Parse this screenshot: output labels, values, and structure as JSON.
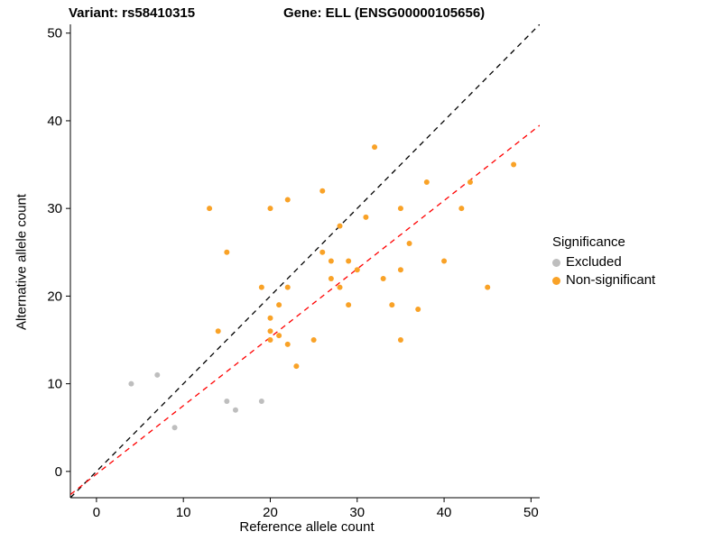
{
  "titles": {
    "variant": "Variant: rs58410315",
    "gene": "Gene: ELL (ENSG00000105656)"
  },
  "chart_data": {
    "type": "scatter",
    "title": "Variant: rs58410315  /  Gene: ELL (ENSG00000105656)",
    "xlabel": "Reference allele count",
    "ylabel": "Alternative allele count",
    "xlim": [
      -3,
      51
    ],
    "ylim": [
      -3,
      51
    ],
    "xticks": [
      0,
      10,
      20,
      30,
      40,
      50
    ],
    "yticks": [
      0,
      10,
      20,
      30,
      40,
      50
    ],
    "grid": false,
    "point_radius": 3,
    "legend": {
      "title": "Significance",
      "position": "right",
      "entries": [
        {
          "label": "Excluded",
          "color": "#BEBEBE"
        },
        {
          "label": "Non-significant",
          "color": "#F9A227"
        }
      ]
    },
    "series": [
      {
        "name": "Excluded",
        "color": "#BEBEBE",
        "points": [
          [
            4,
            10
          ],
          [
            7,
            11
          ],
          [
            9,
            5
          ],
          [
            15,
            8
          ],
          [
            16,
            7
          ],
          [
            19,
            8
          ]
        ]
      },
      {
        "name": "Non-significant",
        "color": "#F9A227",
        "points": [
          [
            13,
            30
          ],
          [
            14,
            16
          ],
          [
            15,
            25
          ],
          [
            19,
            21
          ],
          [
            20,
            30
          ],
          [
            20,
            17.5
          ],
          [
            20,
            16
          ],
          [
            20,
            15
          ],
          [
            21,
            19
          ],
          [
            21,
            15.5
          ],
          [
            22,
            31
          ],
          [
            22,
            21
          ],
          [
            22,
            14.5
          ],
          [
            23,
            12
          ],
          [
            25,
            15
          ],
          [
            26,
            32
          ],
          [
            26,
            25
          ],
          [
            27,
            24
          ],
          [
            27,
            22
          ],
          [
            28,
            28
          ],
          [
            28,
            21
          ],
          [
            29,
            24
          ],
          [
            29,
            19
          ],
          [
            30,
            23
          ],
          [
            31,
            29
          ],
          [
            32,
            37
          ],
          [
            33,
            22
          ],
          [
            34,
            19
          ],
          [
            35,
            30
          ],
          [
            35,
            23
          ],
          [
            35,
            15
          ],
          [
            36,
            26
          ],
          [
            37,
            18.5
          ],
          [
            38,
            33
          ],
          [
            40,
            24
          ],
          [
            42,
            30
          ],
          [
            43,
            33
          ],
          [
            45,
            21
          ],
          [
            48,
            35
          ]
        ]
      }
    ],
    "lines": [
      {
        "name": "identity-line",
        "color": "#000000",
        "dash": "6,5",
        "slope": 1,
        "intercept": 0
      },
      {
        "name": "fit-line",
        "color": "#FF0000",
        "dash": "6,5",
        "slope": 0.78,
        "intercept": -0.3
      }
    ],
    "axis_color": "#000000"
  }
}
